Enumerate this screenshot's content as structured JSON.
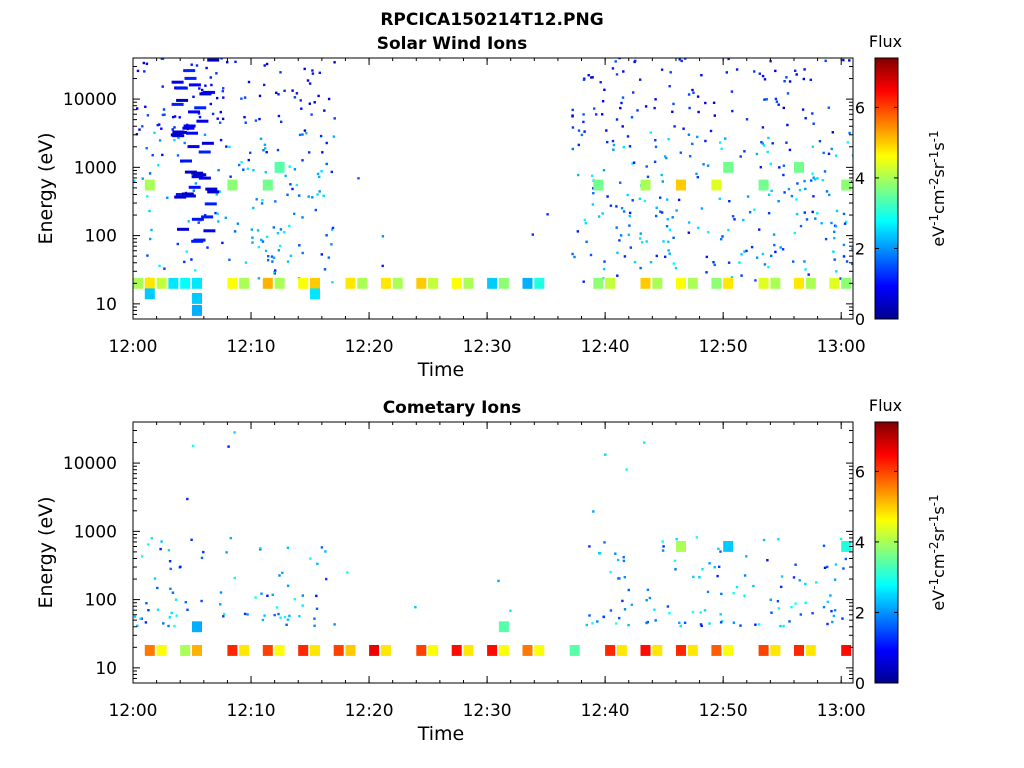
{
  "figure": {
    "title": "RPCICA150214T12.PNG"
  },
  "chart_data": [
    {
      "type": "heatmap",
      "title": "Solar Wind Ions",
      "xlabel": "Time",
      "ylabel": "Energy (eV)",
      "x_range": [
        "12:00",
        "13:01"
      ],
      "y_range": [
        6,
        40000
      ],
      "y_scale": "log",
      "x_ticks": [
        "12:00",
        "12:10",
        "12:20",
        "12:30",
        "12:40",
        "12:50",
        "13:00"
      ],
      "y_ticks": [
        {
          "value": 10,
          "label": "10"
        },
        {
          "value": 100,
          "label": "100"
        },
        {
          "value": 1000,
          "label": "1000"
        },
        {
          "value": 10000,
          "label": "10000"
        }
      ],
      "colorbar": {
        "title": "Flux",
        "units": "eV-1cm-2sr-1s-1",
        "range": [
          0,
          7.4
        ],
        "ticks": [
          0,
          2,
          4,
          6
        ],
        "colormap": "jet"
      },
      "data_gap": [
        "12:17",
        "12:37"
      ],
      "blocks": [
        {
          "t": "12:00",
          "e": 20,
          "v": 4.0
        },
        {
          "t": "12:01",
          "e": 20,
          "v": 4.8
        },
        {
          "t": "12:01",
          "e": 14,
          "v": 2.4
        },
        {
          "t": "12:01",
          "e": 550,
          "v": 4.0
        },
        {
          "t": "12:02",
          "e": 20,
          "v": 4.2
        },
        {
          "t": "12:03",
          "e": 20,
          "v": 2.6
        },
        {
          "t": "12:04",
          "e": 20,
          "v": 2.8
        },
        {
          "t": "12:05",
          "e": 20,
          "v": 2.6
        },
        {
          "t": "12:05",
          "e": 12,
          "v": 2.4
        },
        {
          "t": "12:05",
          "e": 8,
          "v": 2.2
        },
        {
          "t": "12:08",
          "e": 20,
          "v": 4.6
        },
        {
          "t": "12:08",
          "e": 550,
          "v": 3.8
        },
        {
          "t": "12:09",
          "e": 20,
          "v": 4.0
        },
        {
          "t": "12:11",
          "e": 20,
          "v": 5.2
        },
        {
          "t": "12:11",
          "e": 550,
          "v": 3.6
        },
        {
          "t": "12:12",
          "e": 20,
          "v": 4.0
        },
        {
          "t": "12:12",
          "e": 1000,
          "v": 3.4
        },
        {
          "t": "12:14",
          "e": 20,
          "v": 4.6
        },
        {
          "t": "12:15",
          "e": 20,
          "v": 5.0
        },
        {
          "t": "12:15",
          "e": 14,
          "v": 2.6
        },
        {
          "t": "12:18",
          "e": 20,
          "v": 4.8
        },
        {
          "t": "12:19",
          "e": 20,
          "v": 4.0
        },
        {
          "t": "12:21",
          "e": 20,
          "v": 4.8
        },
        {
          "t": "12:22",
          "e": 20,
          "v": 4.0
        },
        {
          "t": "12:24",
          "e": 20,
          "v": 5.0
        },
        {
          "t": "12:25",
          "e": 20,
          "v": 4.2
        },
        {
          "t": "12:27",
          "e": 20,
          "v": 4.6
        },
        {
          "t": "12:28",
          "e": 20,
          "v": 4.0
        },
        {
          "t": "12:30",
          "e": 20,
          "v": 2.4
        },
        {
          "t": "12:31",
          "e": 20,
          "v": 3.8
        },
        {
          "t": "12:33",
          "e": 20,
          "v": 2.2
        },
        {
          "t": "12:34",
          "e": 20,
          "v": 3.0
        },
        {
          "t": "12:39",
          "e": 20,
          "v": 3.8
        },
        {
          "t": "12:39",
          "e": 550,
          "v": 3.6
        },
        {
          "t": "12:40",
          "e": 20,
          "v": 4.2
        },
        {
          "t": "12:43",
          "e": 20,
          "v": 5.0
        },
        {
          "t": "12:43",
          "e": 550,
          "v": 4.0
        },
        {
          "t": "12:44",
          "e": 20,
          "v": 4.0
        },
        {
          "t": "12:46",
          "e": 20,
          "v": 4.6
        },
        {
          "t": "12:46",
          "e": 550,
          "v": 5.0
        },
        {
          "t": "12:47",
          "e": 20,
          "v": 4.0
        },
        {
          "t": "12:49",
          "e": 20,
          "v": 3.8
        },
        {
          "t": "12:49",
          "e": 550,
          "v": 4.4
        },
        {
          "t": "12:50",
          "e": 20,
          "v": 4.8
        },
        {
          "t": "12:50",
          "e": 1000,
          "v": 3.6
        },
        {
          "t": "12:53",
          "e": 20,
          "v": 4.4
        },
        {
          "t": "12:53",
          "e": 550,
          "v": 3.6
        },
        {
          "t": "12:54",
          "e": 20,
          "v": 4.0
        },
        {
          "t": "12:56",
          "e": 20,
          "v": 4.8
        },
        {
          "t": "12:56",
          "e": 1000,
          "v": 3.6
        },
        {
          "t": "12:57",
          "e": 20,
          "v": 4.0
        },
        {
          "t": "12:59",
          "e": 20,
          "v": 4.4
        },
        {
          "t": "13:00",
          "e": 20,
          "v": 3.8
        },
        {
          "t": "13:00",
          "e": 550,
          "v": 3.8
        }
      ]
    },
    {
      "type": "heatmap",
      "title": "Cometary Ions",
      "xlabel": "Time",
      "ylabel": "Energy (eV)",
      "x_range": [
        "12:00",
        "13:01"
      ],
      "y_range": [
        6,
        40000
      ],
      "y_scale": "log",
      "x_ticks": [
        "12:00",
        "12:10",
        "12:20",
        "12:30",
        "12:40",
        "12:50",
        "13:00"
      ],
      "y_ticks": [
        {
          "value": 10,
          "label": "10"
        },
        {
          "value": 100,
          "label": "100"
        },
        {
          "value": 1000,
          "label": "1000"
        },
        {
          "value": 10000,
          "label": "10000"
        }
      ],
      "colorbar": {
        "title": "Flux",
        "units": "eV-1cm-2sr-1s-1",
        "range": [
          0,
          7.4
        ],
        "ticks": [
          0,
          2,
          4,
          6
        ],
        "colormap": "jet"
      },
      "blocks": [
        {
          "t": "12:01",
          "e": 18,
          "v": 5.6
        },
        {
          "t": "12:02",
          "e": 18,
          "v": 4.6
        },
        {
          "t": "12:04",
          "e": 18,
          "v": 4.0
        },
        {
          "t": "12:05",
          "e": 18,
          "v": 5.2
        },
        {
          "t": "12:05",
          "e": 40,
          "v": 2.2
        },
        {
          "t": "12:08",
          "e": 18,
          "v": 6.2
        },
        {
          "t": "12:09",
          "e": 18,
          "v": 4.8
        },
        {
          "t": "12:11",
          "e": 18,
          "v": 6.0
        },
        {
          "t": "12:12",
          "e": 18,
          "v": 4.6
        },
        {
          "t": "12:14",
          "e": 18,
          "v": 6.2
        },
        {
          "t": "12:15",
          "e": 18,
          "v": 4.8
        },
        {
          "t": "12:17",
          "e": 18,
          "v": 6.0
        },
        {
          "t": "12:18",
          "e": 18,
          "v": 5.0
        },
        {
          "t": "12:20",
          "e": 18,
          "v": 6.6
        },
        {
          "t": "12:21",
          "e": 18,
          "v": 4.8
        },
        {
          "t": "12:24",
          "e": 18,
          "v": 6.0
        },
        {
          "t": "12:25",
          "e": 18,
          "v": 4.6
        },
        {
          "t": "12:27",
          "e": 18,
          "v": 6.4
        },
        {
          "t": "12:28",
          "e": 18,
          "v": 4.8
        },
        {
          "t": "12:30",
          "e": 18,
          "v": 6.4
        },
        {
          "t": "12:31",
          "e": 18,
          "v": 4.6
        },
        {
          "t": "12:31",
          "e": 40,
          "v": 3.4
        },
        {
          "t": "12:33",
          "e": 18,
          "v": 5.6
        },
        {
          "t": "12:34",
          "e": 18,
          "v": 4.6
        },
        {
          "t": "12:37",
          "e": 18,
          "v": 3.4
        },
        {
          "t": "12:40",
          "e": 18,
          "v": 6.2
        },
        {
          "t": "12:41",
          "e": 18,
          "v": 4.8
        },
        {
          "t": "12:43",
          "e": 18,
          "v": 6.4
        },
        {
          "t": "12:44",
          "e": 18,
          "v": 4.8
        },
        {
          "t": "12:46",
          "e": 18,
          "v": 6.2
        },
        {
          "t": "12:47",
          "e": 18,
          "v": 4.8
        },
        {
          "t": "12:46",
          "e": 600,
          "v": 4.0
        },
        {
          "t": "12:49",
          "e": 18,
          "v": 5.8
        },
        {
          "t": "12:50",
          "e": 18,
          "v": 4.6
        },
        {
          "t": "12:50",
          "e": 600,
          "v": 2.4
        },
        {
          "t": "12:53",
          "e": 18,
          "v": 6.0
        },
        {
          "t": "12:54",
          "e": 18,
          "v": 4.8
        },
        {
          "t": "12:56",
          "e": 18,
          "v": 6.2
        },
        {
          "t": "12:57",
          "e": 18,
          "v": 4.8
        },
        {
          "t": "13:00",
          "e": 18,
          "v": 6.4
        },
        {
          "t": "13:00",
          "e": 600,
          "v": 3.0
        }
      ]
    }
  ]
}
